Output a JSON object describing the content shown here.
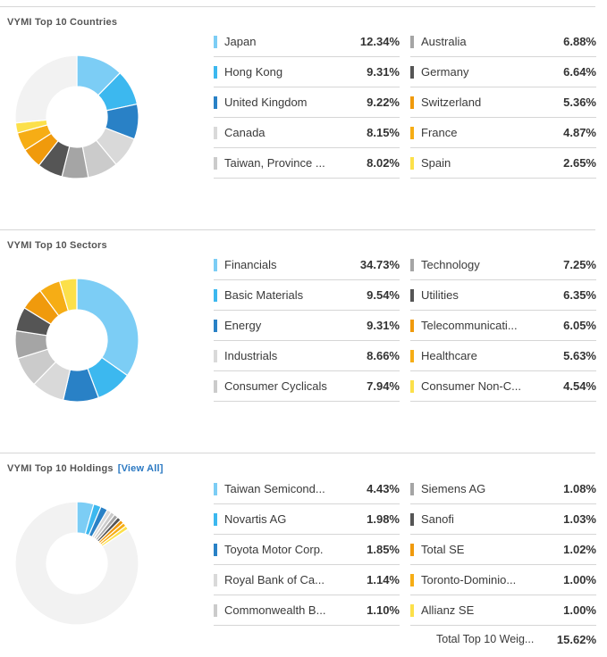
{
  "colors": [
    "#7ccdf5",
    "#3cb8ef",
    "#2981c6",
    "#d9d9d9",
    "#cbcbcb",
    "#a5a5a5",
    "#555555",
    "#f09a0c",
    "#f6ad15",
    "#fce04a"
  ],
  "remainder_color": "#f2f2f2",
  "chart_data": [
    {
      "type": "pie",
      "title": "VYMI Top 10 Countries",
      "categories": [
        "Japan",
        "Hong Kong",
        "United Kingdom",
        "Canada",
        "Taiwan, Province ...",
        "Australia",
        "Germany",
        "Switzerland",
        "France",
        "Spain"
      ],
      "values": [
        12.34,
        9.31,
        9.22,
        8.15,
        8.02,
        6.88,
        6.64,
        5.36,
        4.87,
        2.65
      ],
      "labels": [
        "12.34%",
        "9.31%",
        "9.22%",
        "8.15%",
        "8.02%",
        "6.88%",
        "6.64%",
        "5.36%",
        "4.87%",
        "2.65%"
      ]
    },
    {
      "type": "pie",
      "title": "VYMI Top 10 Sectors",
      "categories": [
        "Financials",
        "Basic Materials",
        "Energy",
        "Industrials",
        "Consumer Cyclicals",
        "Technology",
        "Utilities",
        "Telecommunicati...",
        "Healthcare",
        "Consumer Non-C..."
      ],
      "values": [
        34.73,
        9.54,
        9.31,
        8.66,
        7.94,
        7.25,
        6.35,
        6.05,
        5.63,
        4.54
      ],
      "labels": [
        "34.73%",
        "9.54%",
        "9.31%",
        "8.66%",
        "7.94%",
        "7.25%",
        "6.35%",
        "6.05%",
        "5.63%",
        "4.54%"
      ]
    },
    {
      "type": "pie",
      "title": "VYMI Top 10 Holdings",
      "link": "[View All]",
      "categories": [
        "Taiwan Semicond...",
        "Novartis AG",
        "Toyota Motor Corp.",
        "Royal Bank of Ca...",
        "Commonwealth B...",
        "Siemens AG",
        "Sanofi",
        "Total SE",
        "Toronto-Dominio...",
        "Allianz SE"
      ],
      "values": [
        4.43,
        1.98,
        1.85,
        1.14,
        1.1,
        1.08,
        1.03,
        1.02,
        1.0,
        1.0
      ],
      "labels": [
        "4.43%",
        "1.98%",
        "1.85%",
        "1.14%",
        "1.10%",
        "1.08%",
        "1.03%",
        "1.02%",
        "1.00%",
        "1.00%"
      ],
      "total_label": "Total Top 10 Weig...",
      "total_value": "15.62%"
    }
  ]
}
